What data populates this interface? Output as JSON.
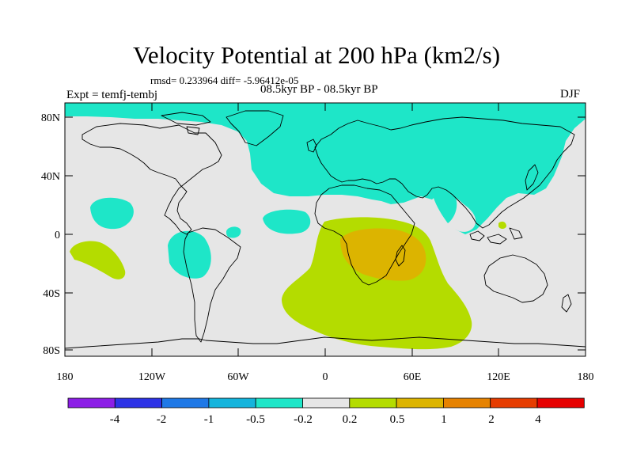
{
  "title": "Velocity Potential at 200 hPa (km2/s)",
  "stats": "rmsd= 0.233964 diff= -5.96412e-05",
  "experiment": "Expt = temfj-tembj",
  "period": "08.5kyr BP - 08.5kyr BP",
  "season": "DJF",
  "lat_labels": [
    "80N",
    "40N",
    "0",
    "40S",
    "80S"
  ],
  "lon_labels": [
    "180",
    "120W",
    "60W",
    "0",
    "60E",
    "120E",
    "180"
  ],
  "colorbar": {
    "colors": [
      "#8c1ee6",
      "#2d32e6",
      "#1e78e6",
      "#14b4dc",
      "#1ee6c8",
      "#e6e6e6",
      "#b4dc00",
      "#dcb400",
      "#e68200",
      "#e63c00",
      "#e60000"
    ],
    "labels": [
      "-4",
      "-2",
      "-1",
      "-0.5",
      "-0.2",
      "0.2",
      "0.5",
      "1",
      "2",
      "4"
    ]
  },
  "colors": {
    "background": "#e6e6e6",
    "negative": "#1ee6c8",
    "positive_low": "#b4dc00",
    "positive_mid": "#dcb400",
    "coast": "#000000"
  }
}
